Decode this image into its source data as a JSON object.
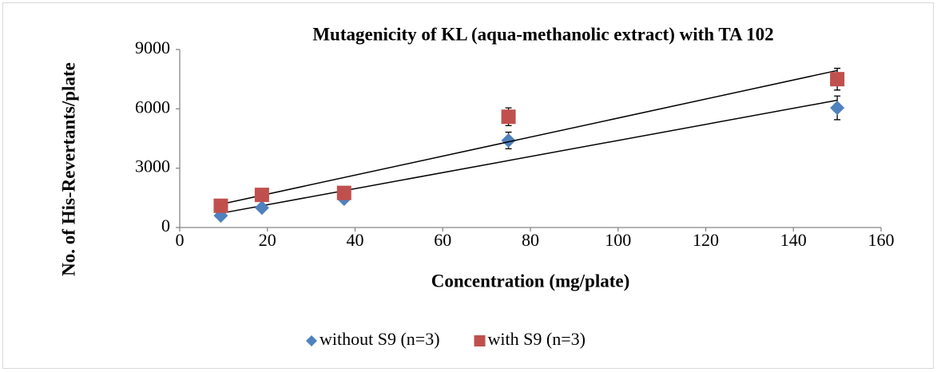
{
  "chart_data": {
    "type": "scatter",
    "title": "Mutagenicity of KL (aqua-methanolic extract) with TA 102",
    "x_label": "Concentration (mg/plate)",
    "y_label": "No. of His-Revertants/plate",
    "x": [
      9.375,
      18.75,
      37.5,
      75,
      150
    ],
    "series": [
      {
        "name": "without S9 (n=3)",
        "color": "#4f81bd",
        "marker": "diamond",
        "values": [
          600,
          1000,
          1450,
          4400,
          6050
        ],
        "errors": [
          100,
          100,
          100,
          420,
          600
        ]
      },
      {
        "name": "with S9 (n=3)",
        "color": "#c0504d",
        "marker": "square",
        "values": [
          1100,
          1650,
          1750,
          5600,
          7500
        ],
        "errors": [
          100,
          100,
          100,
          450,
          550
        ]
      }
    ],
    "trendline": "linear",
    "xlim": [
      0,
      160
    ],
    "xticks": [
      0,
      20,
      40,
      60,
      80,
      100,
      120,
      140,
      160
    ],
    "ylim": [
      0,
      9000
    ],
    "yticks": [
      0,
      3000,
      6000,
      9000
    ],
    "legend": "bottom"
  }
}
